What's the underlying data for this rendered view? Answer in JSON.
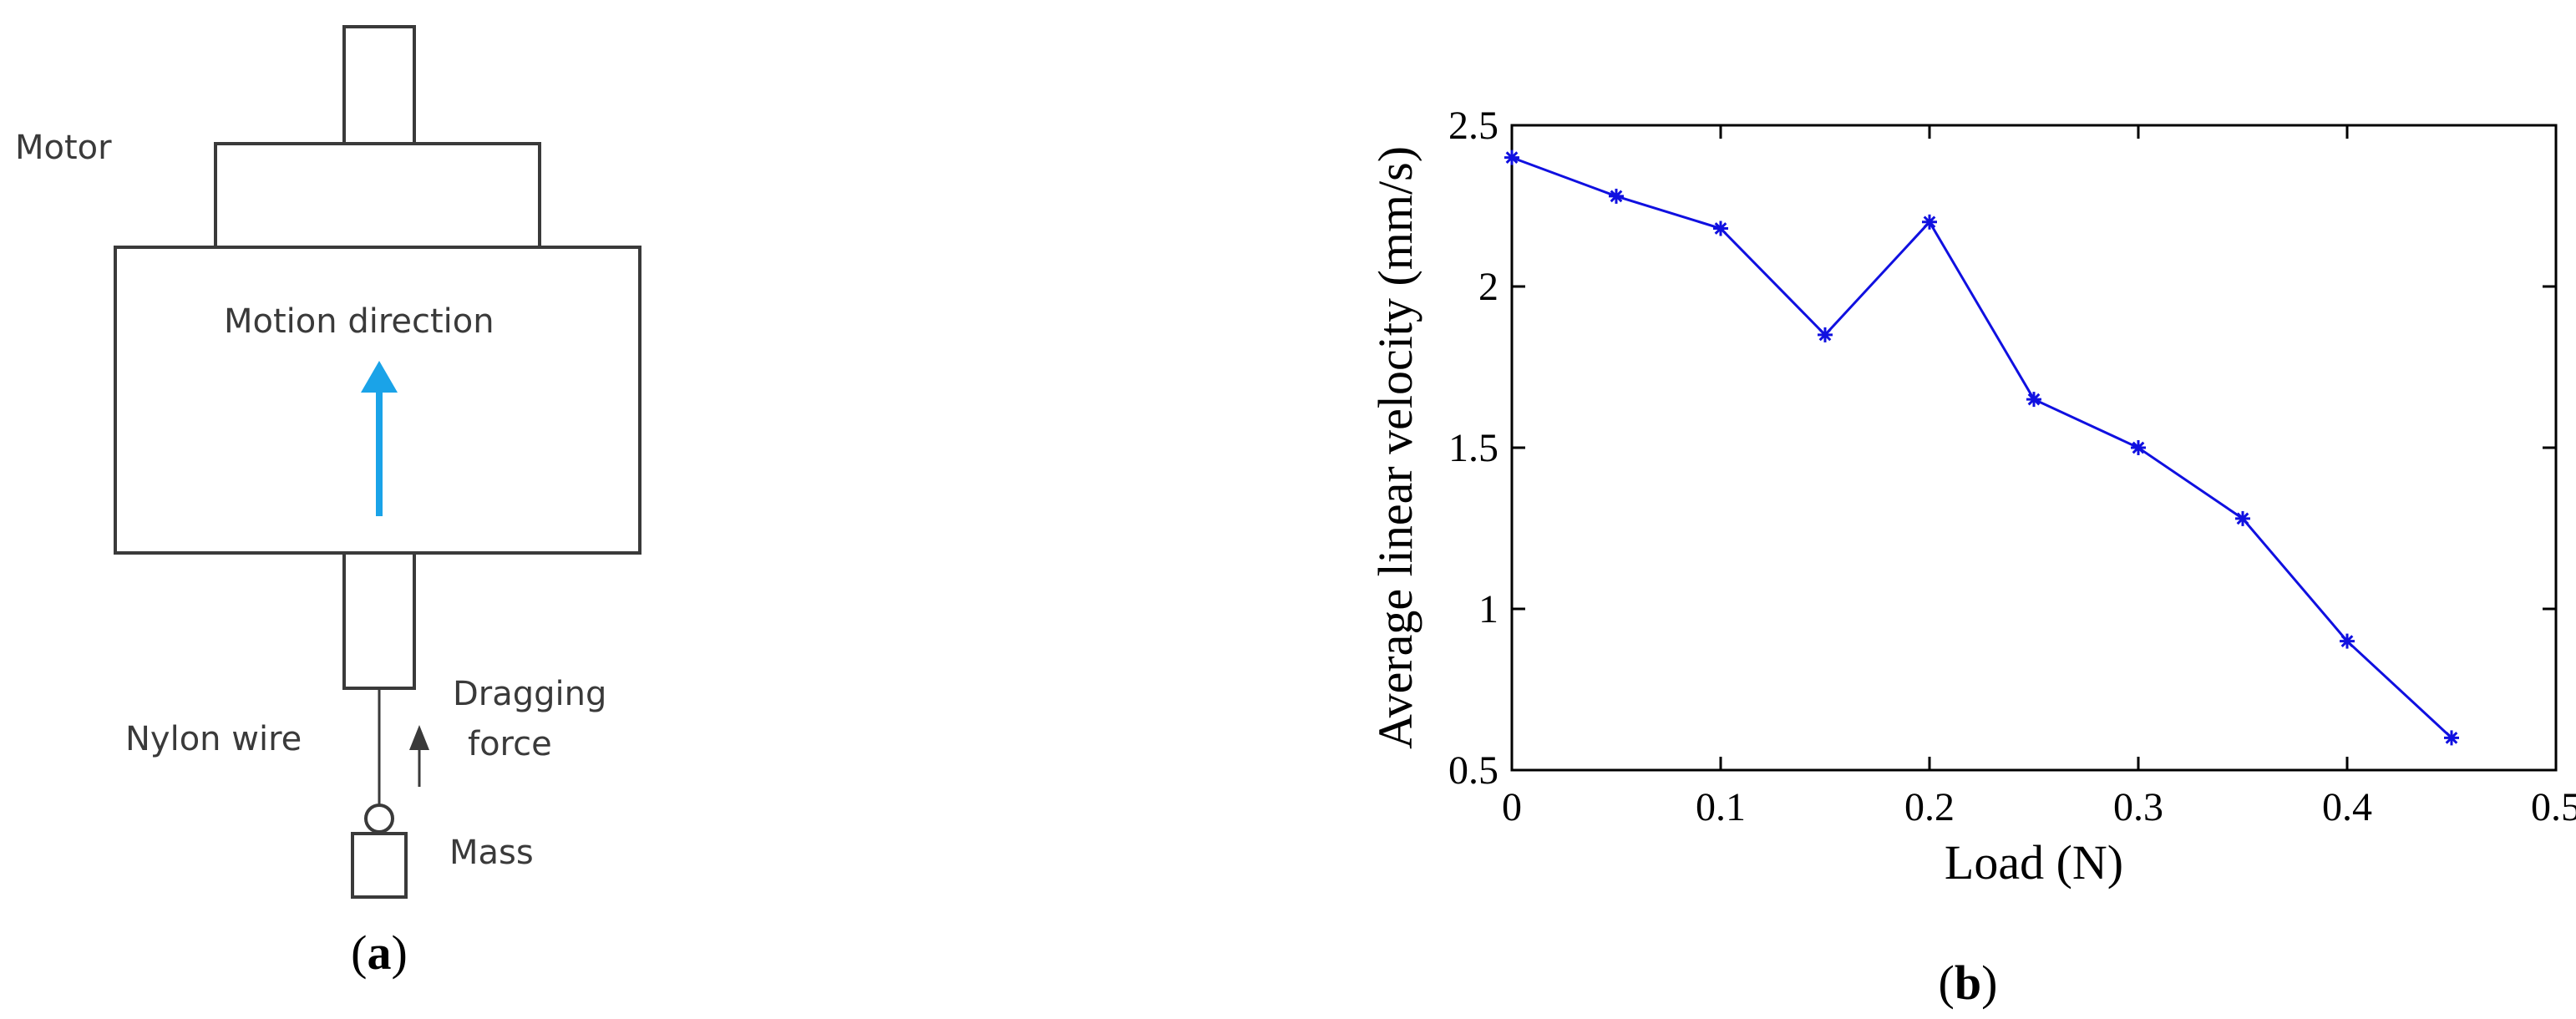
{
  "panel_a": {
    "label": "a",
    "texts": {
      "motor": "Motor",
      "motion_direction": "Motion direction",
      "nylon_wire": "Nylon wire",
      "dragging": "Dragging",
      "force": "force",
      "mass": "Mass"
    },
    "colors": {
      "outline": "#3a3a3a",
      "motion_arrow": "#1aa3e8",
      "force_arrow": "#3a3a3a"
    }
  },
  "panel_b": {
    "label": "b"
  },
  "chart_data": {
    "type": "line",
    "title": "",
    "xlabel": "Load (N)",
    "ylabel": "Average linear velocity (mm/s)",
    "xlim": [
      0,
      0.5
    ],
    "ylim": [
      0.5,
      2.5
    ],
    "xticks": [
      0,
      0.1,
      0.2,
      0.3,
      0.4,
      0.5
    ],
    "xtick_labels": [
      "0",
      "0.1",
      "0.2",
      "0.3",
      "0.4",
      "0.5"
    ],
    "yticks": [
      0.5,
      1,
      1.5,
      2,
      2.5
    ],
    "ytick_labels": [
      "0.5",
      "1",
      "1.5",
      "2",
      "2.5"
    ],
    "grid": false,
    "marker": "asterisk",
    "color": "#1010e0",
    "series": [
      {
        "x": [
          0,
          0.05,
          0.1,
          0.15,
          0.2,
          0.25,
          0.3,
          0.35,
          0.4,
          0.45
        ],
        "values": [
          2.4,
          2.28,
          2.18,
          1.85,
          2.2,
          1.65,
          1.5,
          1.28,
          0.9,
          0.6
        ]
      }
    ]
  }
}
